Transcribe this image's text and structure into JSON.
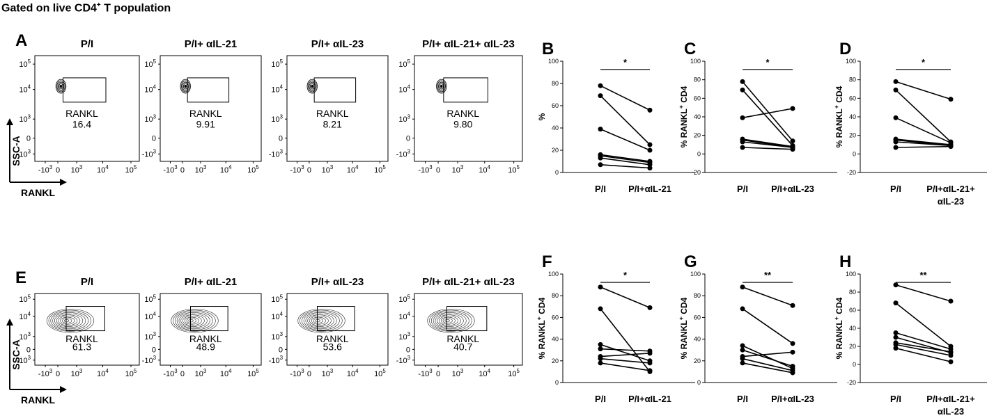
{
  "figure_title": {
    "prefix": "Gated on live CD4",
    "sup": "+",
    "suffix": " T population"
  },
  "chart_data": {
    "rows": [
      {
        "flow_panels": [
          {
            "letter": "A",
            "title": "P/I",
            "gate_label": "RANKL",
            "gate_value": "16.4"
          },
          {
            "letter": "",
            "title": "P/I+ αIL-21",
            "gate_label": "RANKL",
            "gate_value": "9.91"
          },
          {
            "letter": "",
            "title": "P/I+ αIL-23",
            "gate_label": "RANKL",
            "gate_value": "8.21"
          },
          {
            "letter": "",
            "title": "P/I+ αIL-21+ αIL-23",
            "gate_label": "RANKL",
            "gate_value": "9.80"
          }
        ],
        "flow_axes": {
          "y_ticks": [
            [
              "10",
              "5"
            ],
            [
              "10",
              "4"
            ],
            [
              "10",
              "3"
            ],
            [
              "0",
              ""
            ],
            [
              "-10",
              "3"
            ]
          ],
          "x_ticks": [
            [
              "-10",
              "3"
            ],
            [
              "0",
              ""
            ],
            [
              "10",
              "3"
            ],
            [
              "10",
              "4"
            ],
            [
              "10",
              "5"
            ]
          ],
          "y_label": "SSC-A",
          "x_label": "RANKL"
        },
        "paired_plots": [
          {
            "letter": "B",
            "type": "line",
            "ylabel": "%",
            "ylabel_sup": "",
            "ylabel_rest": "",
            "ylim": [
              0,
              100
            ],
            "yticks": [
              0,
              20,
              40,
              60,
              80,
              100
            ],
            "categories": [
              "P/I",
              "P/I+αIL-21"
            ],
            "significance": "*",
            "series": [
              [
                78,
                56
              ],
              [
                69,
                25
              ],
              [
                39,
                20
              ],
              [
                16,
                10
              ],
              [
                15,
                9
              ],
              [
                13,
                7
              ],
              [
                7,
                4
              ]
            ]
          },
          {
            "letter": "C",
            "type": "line",
            "ylabel": "% RANKL",
            "ylabel_sup": "+",
            "ylabel_rest": " CD4",
            "ylim": [
              -20,
              100
            ],
            "yticks": [
              -20,
              0,
              20,
              40,
              60,
              80,
              100
            ],
            "categories": [
              "P/I",
              "P/I+αIL-23"
            ],
            "significance": "*",
            "series": [
              [
                78,
                14
              ],
              [
                69,
                9
              ],
              [
                39,
                49
              ],
              [
                16,
                8
              ],
              [
                15,
                7
              ],
              [
                13,
                7
              ],
              [
                7,
                5
              ]
            ]
          },
          {
            "letter": "D",
            "type": "line",
            "ylabel": "% RANKL",
            "ylabel_sup": "+",
            "ylabel_rest": " CD4",
            "ylim": [
              -20,
              100
            ],
            "yticks": [
              -20,
              0,
              20,
              40,
              60,
              80,
              100
            ],
            "categories": [
              "P/I",
              "P/I+αIL-21+",
              "αIL-23"
            ],
            "significance": "*",
            "series": [
              [
                78,
                59
              ],
              [
                69,
                13
              ],
              [
                39,
                12
              ],
              [
                16,
                10
              ],
              [
                15,
                9
              ],
              [
                13,
                9
              ],
              [
                7,
                8
              ]
            ]
          }
        ]
      },
      {
        "flow_panels": [
          {
            "letter": "E",
            "title": "P/I",
            "gate_label": "RANKL",
            "gate_value": "61.3"
          },
          {
            "letter": "",
            "title": "P/I+ αIL-21",
            "gate_label": "RANKL",
            "gate_value": "48.9"
          },
          {
            "letter": "",
            "title": "P/I+ αIL-23",
            "gate_label": "RANKL",
            "gate_value": "53.6"
          },
          {
            "letter": "",
            "title": "P/I+ αIL-21+ αIL-23",
            "gate_label": "RANKL",
            "gate_value": "40.7"
          }
        ],
        "flow_axes": {
          "y_ticks": [
            [
              "10",
              "5"
            ],
            [
              "10",
              "4"
            ],
            [
              "10",
              "3"
            ],
            [
              "0",
              ""
            ],
            [
              "-10",
              "3"
            ]
          ],
          "x_ticks": [
            [
              "-10",
              "3"
            ],
            [
              "0",
              ""
            ],
            [
              "10",
              "3"
            ],
            [
              "10",
              "4"
            ],
            [
              "10",
              "5"
            ]
          ],
          "y_label": "SSC-A",
          "x_label": "RANKL"
        },
        "paired_plots": [
          {
            "letter": "F",
            "type": "line",
            "ylabel": "% RANKL",
            "ylabel_sup": "+",
            "ylabel_rest": " CD4",
            "ylim": [
              0,
              100
            ],
            "yticks": [
              0,
              20,
              40,
              60,
              80,
              100
            ],
            "categories": [
              "P/I",
              "P/I+αIL-21"
            ],
            "significance": "*",
            "series": [
              [
                88,
                69
              ],
              [
                68,
                10
              ],
              [
                35,
                20
              ],
              [
                31,
                29
              ],
              [
                24,
                27
              ],
              [
                22,
                18
              ],
              [
                18,
                11
              ]
            ]
          },
          {
            "letter": "G",
            "type": "line",
            "ylabel": "% RANKL",
            "ylabel_sup": "+",
            "ylabel_rest": " CD4",
            "ylim": [
              0,
              100
            ],
            "yticks": [
              0,
              20,
              40,
              60,
              80,
              100
            ],
            "categories": [
              "P/I",
              "P/I+αIL-23"
            ],
            "significance": "**",
            "series": [
              [
                88,
                71
              ],
              [
                68,
                36
              ],
              [
                34,
                13
              ],
              [
                30,
                15
              ],
              [
                24,
                28
              ],
              [
                22,
                11
              ],
              [
                18,
                9
              ]
            ]
          },
          {
            "letter": "H",
            "type": "line",
            "ylabel": "% RANKL",
            "ylabel_sup": "+",
            "ylabel_rest": " CD4",
            "ylim": [
              -20,
              100
            ],
            "yticks": [
              -20,
              0,
              20,
              40,
              60,
              80,
              100
            ],
            "categories": [
              "P/I",
              "P/I+αIL-21+",
              "αIL-23"
            ],
            "significance": "**",
            "series": [
              [
                88,
                70
              ],
              [
                68,
                20
              ],
              [
                35,
                17
              ],
              [
                30,
                13
              ],
              [
                24,
                14
              ],
              [
                22,
                10
              ],
              [
                18,
                3
              ]
            ]
          }
        ]
      }
    ]
  }
}
